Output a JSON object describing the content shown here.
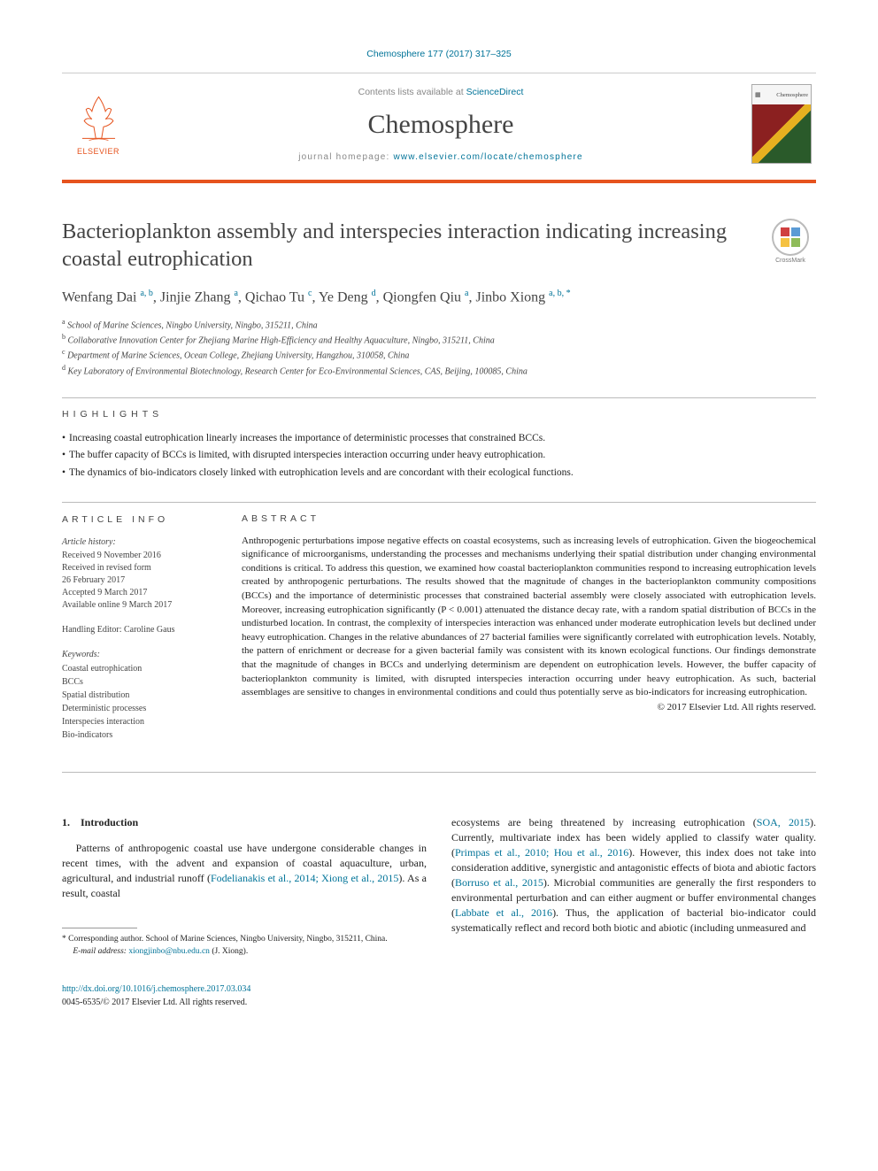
{
  "citation": "Chemosphere 177 (2017) 317–325",
  "masthead": {
    "contents_prefix": "Contents lists available at ",
    "contents_link": "ScienceDirect",
    "journal": "Chemosphere",
    "homepage_prefix": "journal homepage: ",
    "homepage_url": "www.elsevier.com/locate/chemosphere",
    "publisher": "ELSEVIER",
    "cover_label": "Chemosphere"
  },
  "colors": {
    "accent_orange": "#e6531e",
    "link_teal": "#007398",
    "rule_gray": "#bbbbbb",
    "text_dark": "#222222"
  },
  "title": "Bacterioplankton assembly and interspecies interaction indicating increasing coastal eutrophication",
  "crossmark": "CrossMark",
  "authors_html": "Wenfang Dai <sup>a, b</sup>, Jinjie Zhang <sup>a</sup>, Qichao Tu <sup>c</sup>, Ye Deng <sup>d</sup>, Qiongfen Qiu <sup>a</sup>, Jinbo Xiong <sup>a, b, *</sup>",
  "affiliations": [
    {
      "label": "a",
      "text": "School of Marine Sciences, Ningbo University, Ningbo, 315211, China"
    },
    {
      "label": "b",
      "text": "Collaborative Innovation Center for Zhejiang Marine High-Efficiency and Healthy Aquaculture, Ningbo, 315211, China"
    },
    {
      "label": "c",
      "text": "Department of Marine Sciences, Ocean College, Zhejiang University, Hangzhou, 310058, China"
    },
    {
      "label": "d",
      "text": "Key Laboratory of Environmental Biotechnology, Research Center for Eco-Environmental Sciences, CAS, Beijing, 100085, China"
    }
  ],
  "highlights": {
    "head": "highlights",
    "items": [
      "Increasing coastal eutrophication linearly increases the importance of deterministic processes that constrained BCCs.",
      "The buffer capacity of BCCs is limited, with disrupted interspecies interaction occurring under heavy eutrophication.",
      "The dynamics of bio-indicators closely linked with eutrophication levels and are concordant with their ecological functions."
    ]
  },
  "article_info": {
    "head": "article info",
    "history_label": "Article history:",
    "history": [
      "Received 9 November 2016",
      "Received in revised form",
      "26 February 2017",
      "Accepted 9 March 2017",
      "Available online 9 March 2017"
    ],
    "handling": "Handling Editor: Caroline Gaus",
    "keywords_label": "Keywords:",
    "keywords": [
      "Coastal eutrophication",
      "BCCs",
      "Spatial distribution",
      "Deterministic processes",
      "Interspecies interaction",
      "Bio-indicators"
    ]
  },
  "abstract": {
    "head": "abstract",
    "text": "Anthropogenic perturbations impose negative effects on coastal ecosystems, such as increasing levels of eutrophication. Given the biogeochemical significance of microorganisms, understanding the processes and mechanisms underlying their spatial distribution under changing environmental conditions is critical. To address this question, we examined how coastal bacterioplankton communities respond to increasing eutrophication levels created by anthropogenic perturbations. The results showed that the magnitude of changes in the bacterioplankton community compositions (BCCs) and the importance of deterministic processes that constrained bacterial assembly were closely associated with eutrophication levels. Moreover, increasing eutrophication significantly (P < 0.001) attenuated the distance decay rate, with a random spatial distribution of BCCs in the undisturbed location. In contrast, the complexity of interspecies interaction was enhanced under moderate eutrophication levels but declined under heavy eutrophication. Changes in the relative abundances of 27 bacterial families were significantly correlated with eutrophication levels. Notably, the pattern of enrichment or decrease for a given bacterial family was consistent with its known ecological functions. Our findings demonstrate that the magnitude of changes in BCCs and underlying determinism are dependent on eutrophication levels. However, the buffer capacity of bacterioplankton community is limited, with disrupted interspecies interaction occurring under heavy eutrophication. As such, bacterial assemblages are sensitive to changes in environmental conditions and could thus potentially serve as bio-indicators for increasing eutrophication.",
    "copyright": "© 2017 Elsevier Ltd. All rights reserved."
  },
  "body": {
    "section_no": "1.",
    "section_title": "Introduction",
    "left_para": "Patterns of anthropogenic coastal use have undergone considerable changes in recent times, with the advent and expansion of coastal aquaculture, urban, agricultural, and industrial runoff (Fodelianakis et al., 2014; Xiong et al., 2015). As a result, coastal",
    "right_para": "ecosystems are being threatened by increasing eutrophication (SOA, 2015). Currently, multivariate index has been widely applied to classify water quality. (Primpas et al., 2010; Hou et al., 2016). However, this index does not take into consideration additive, synergistic and antagonistic effects of biota and abiotic factors (Borruso et al., 2015). Microbial communities are generally the first responders to environmental perturbation and can either augment or buffer environmental changes (Labbate et al., 2016). Thus, the application of bacterial bio-indicator could systematically reflect and record both biotic and abiotic (including unmeasured and",
    "left_refs": "Fodelianakis et al., 2014; Xiong et al., 2015",
    "right_ref1": "SOA, 2015",
    "right_ref2": "Primpas et al., 2010; Hou et al., 2016",
    "right_ref3": "Borruso et al., 2015",
    "right_ref4": "Labbate et al., 2016"
  },
  "footnote": {
    "corresponding": "* Corresponding author. School of Marine Sciences, Ningbo University, Ningbo, 315211, China.",
    "email_label": "E-mail address:",
    "email": "xiongjinbo@nbu.edu.cn",
    "email_suffix": "(J. Xiong)."
  },
  "footer": {
    "doi": "http://dx.doi.org/10.1016/j.chemosphere.2017.03.034",
    "issn_copyright": "0045-6535/© 2017 Elsevier Ltd. All rights reserved."
  }
}
